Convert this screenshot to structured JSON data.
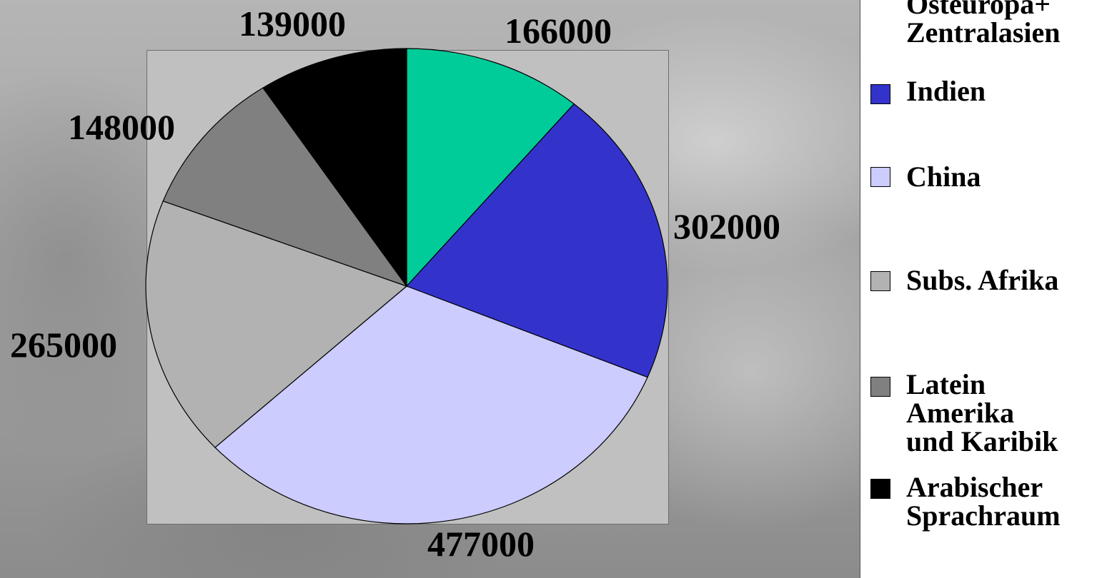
{
  "chart_data": {
    "type": "pie",
    "start_angle_deg": 0,
    "direction": "clockwise",
    "slices": [
      {
        "label": "Osteuropa+ Zentralasien",
        "value": 166000,
        "color": "#00cc99"
      },
      {
        "label": "Indien",
        "value": 302000,
        "color": "#3333cc"
      },
      {
        "label": "China",
        "value": 477000,
        "color": "#ccccff"
      },
      {
        "label": "Subs. Afrika",
        "value": 265000,
        "color": "#b2b2b2"
      },
      {
        "label": "Latein Amerika und Karibik",
        "value": 148000,
        "color": "#808080"
      },
      {
        "label": "Arabischer Sprachraum",
        "value": 139000,
        "color": "#000000"
      }
    ],
    "data_labels": [
      "166000",
      "302000",
      "477000",
      "265000",
      "148000",
      "139000"
    ]
  },
  "legend": {
    "items": [
      {
        "lines": [
          "Osteuropa+",
          "Zentralasien"
        ],
        "color": "#00cc99"
      },
      {
        "lines": [
          "Indien"
        ],
        "color": "#3333cc"
      },
      {
        "lines": [
          "China"
        ],
        "color": "#ccccff"
      },
      {
        "lines": [
          "Subs. Afrika"
        ],
        "color": "#b2b2b2"
      },
      {
        "lines": [
          "Latein",
          "Amerika",
          "und Karibik"
        ],
        "color": "#808080"
      },
      {
        "lines": [
          "Arabischer",
          "Sprachraum"
        ],
        "color": "#000000"
      }
    ]
  }
}
